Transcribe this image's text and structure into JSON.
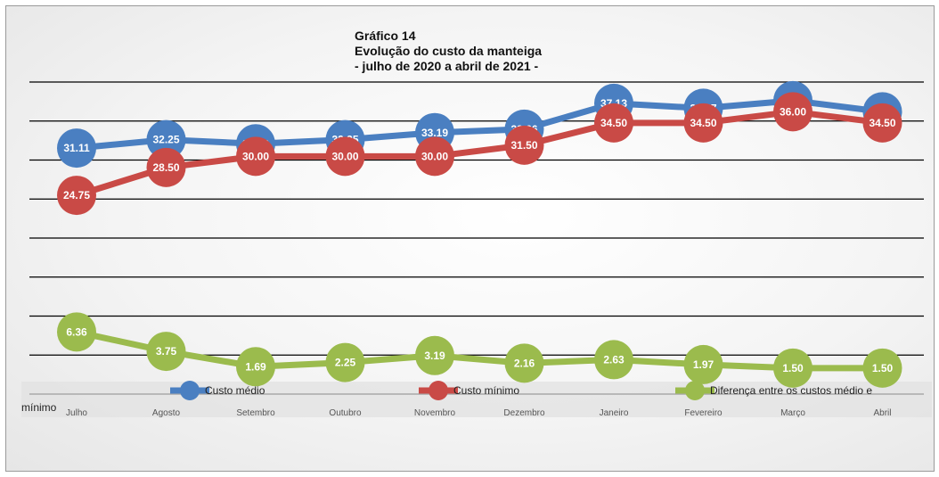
{
  "chart_data": {
    "type": "line",
    "title_lines": [
      "Gráfico 14",
      "Evolução do custo da manteiga",
      "- julho de 2020 a abril de 2021 -"
    ],
    "categories": [
      "Julho",
      "Agosto",
      "Setembro",
      "Outubro",
      "Novembro",
      "Dezembro",
      "Janeiro",
      "Fevereiro",
      "Março",
      "Abril"
    ],
    "series": [
      {
        "name": "Custo médio",
        "color": "#4a7fc1",
        "values": [
          31.11,
          32.25,
          31.69,
          32.25,
          33.19,
          33.66,
          37.13,
          36.47,
          37.5,
          36.0
        ],
        "labels": [
          "31.11",
          "32.25",
          "31.69",
          "32.25",
          "33.19",
          "33.66",
          "37.13",
          "36.47",
          "37.50",
          "36.00"
        ]
      },
      {
        "name": "Custo mínimo",
        "color": "#c94a46",
        "values": [
          24.75,
          28.5,
          30.0,
          30.0,
          30.0,
          31.5,
          34.5,
          34.5,
          36.0,
          34.5
        ],
        "labels": [
          "24.75",
          "28.50",
          "30.00",
          "30.00",
          "30.00",
          "31.50",
          "34.50",
          "34.50",
          "36.00",
          "34.50"
        ]
      },
      {
        "name": "Diferença entre os custos médio e mínimo",
        "color": "#9bbb4d",
        "values": [
          6.36,
          3.75,
          1.69,
          2.25,
          3.19,
          2.16,
          2.63,
          1.97,
          1.5,
          1.5
        ],
        "labels": [
          "6.36",
          "3.75",
          "1.69",
          "2.25",
          "3.19",
          "2.16",
          "2.63",
          "1.97",
          "1.50",
          "1.50"
        ]
      }
    ],
    "legend": {
      "position": "bottom",
      "entries": [
        "Custo médio",
        "Custo mínimo",
        "Diferença entre os custos médio e"
      ],
      "wrap_text": "mínimo"
    },
    "ylim": [
      -2,
      40
    ],
    "grid": true
  }
}
